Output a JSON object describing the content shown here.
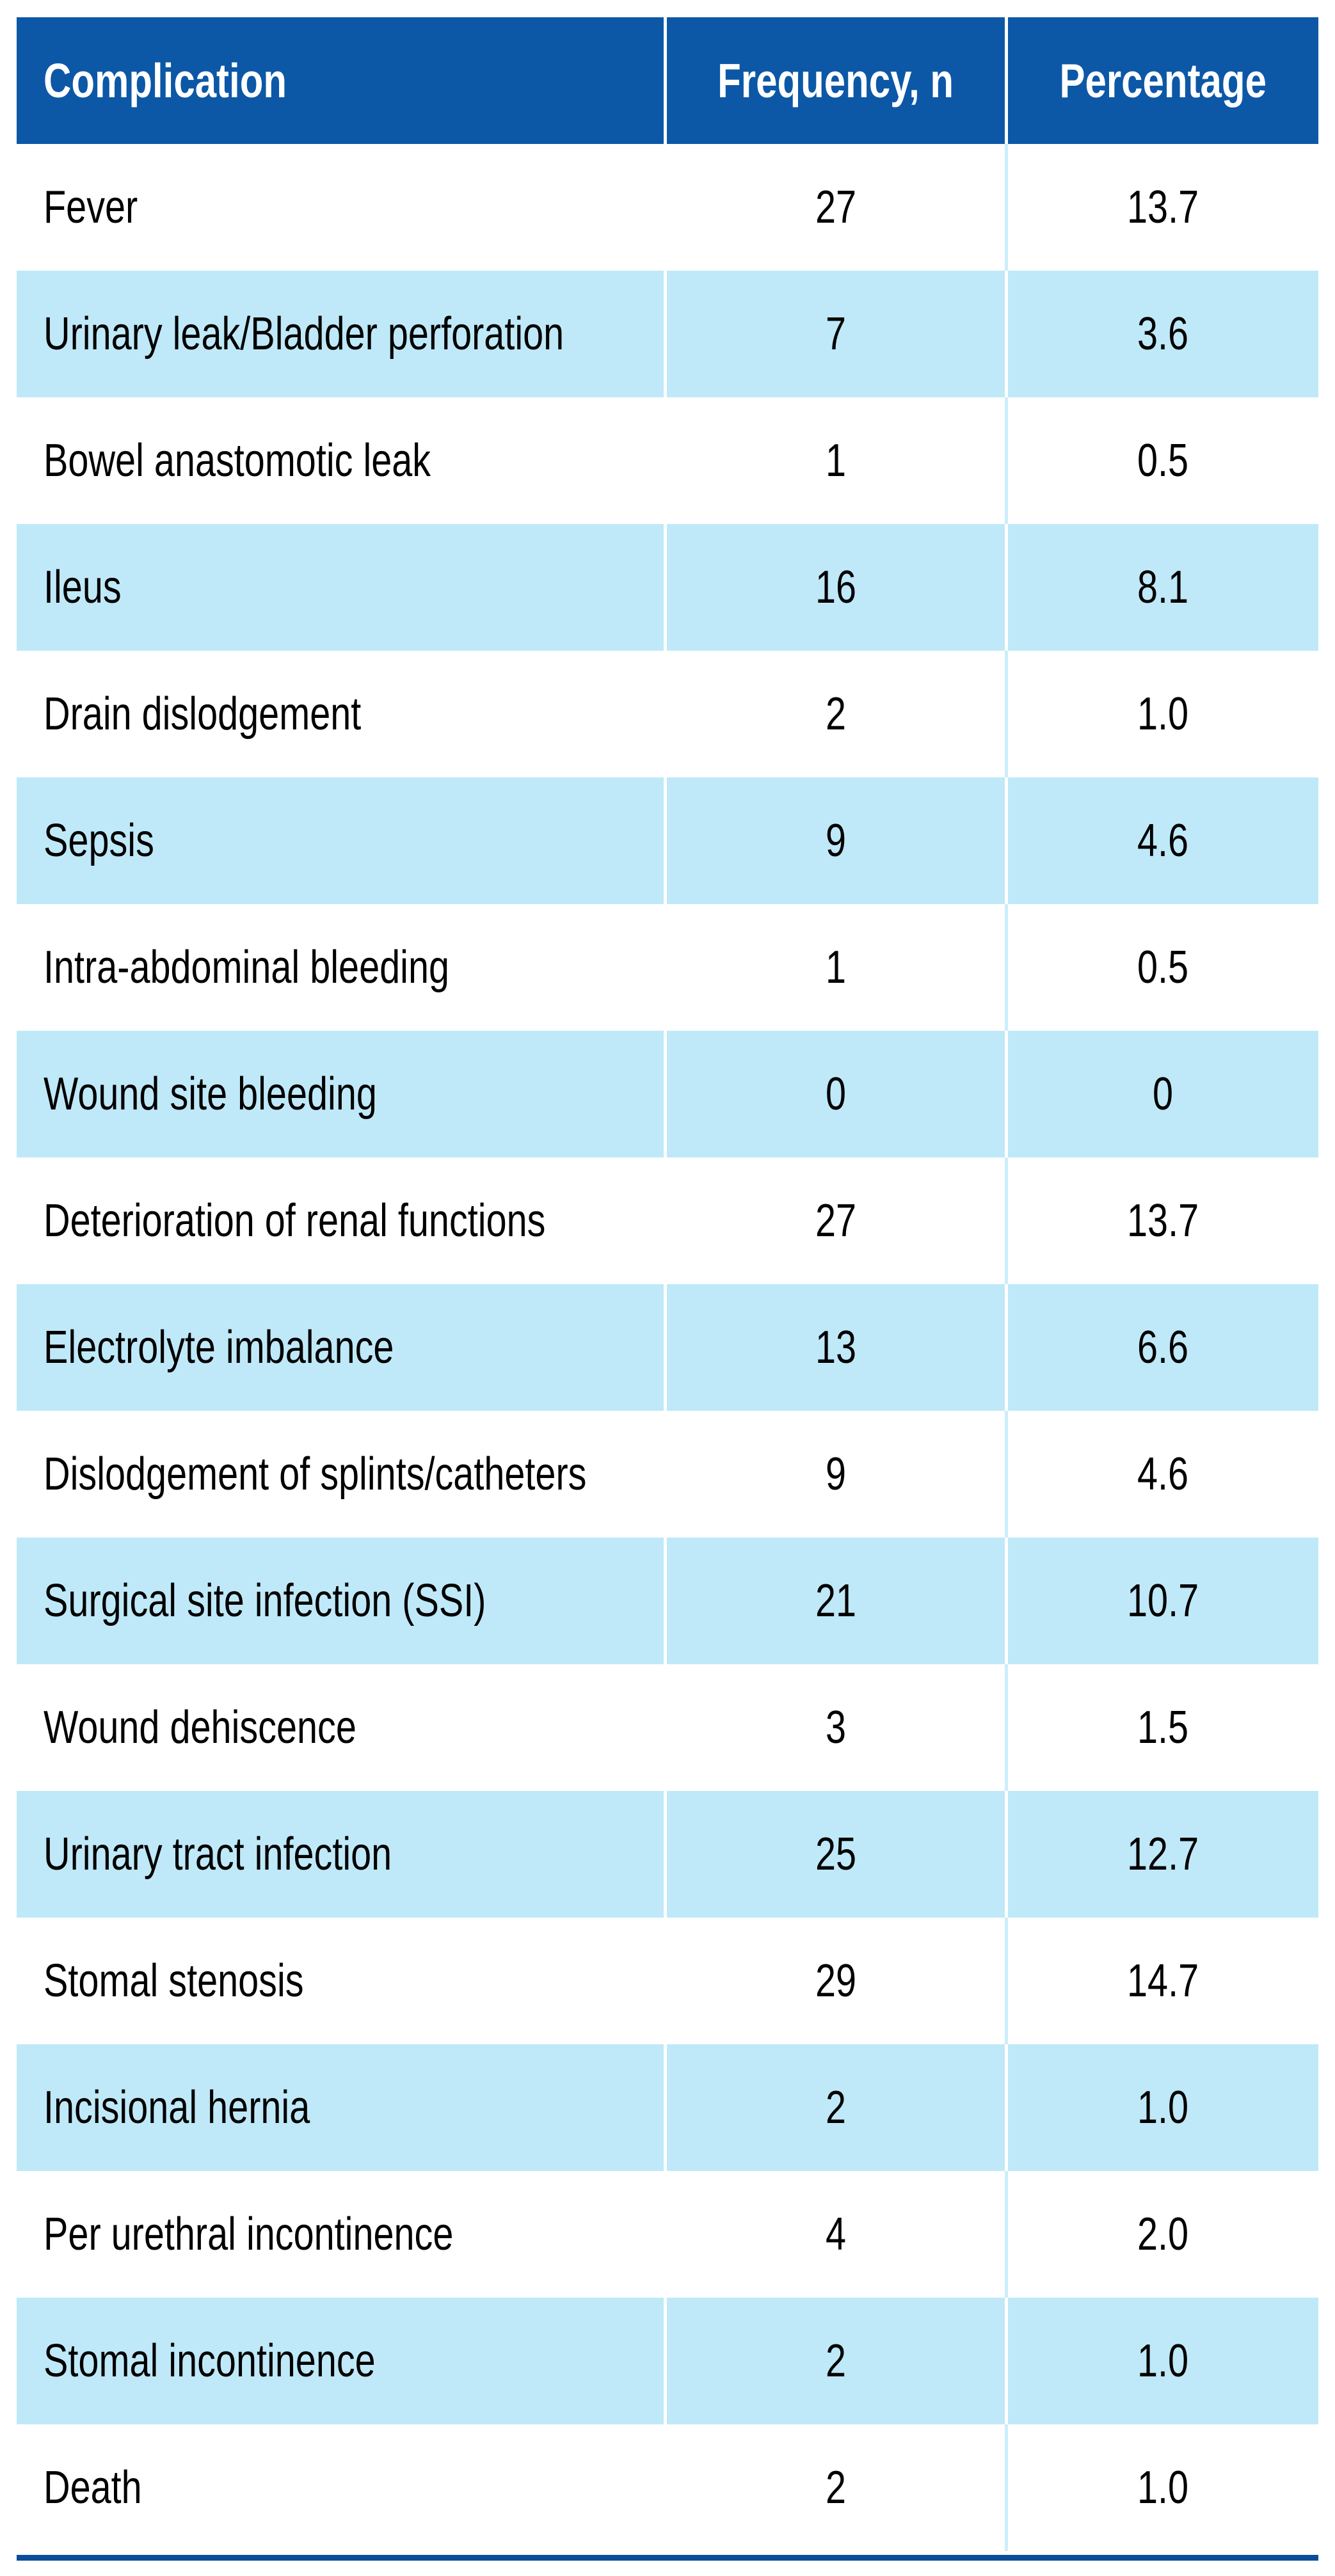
{
  "table": {
    "headers": {
      "complication": "Complication",
      "frequency": "Frequency, n",
      "percentage": "Percentage"
    },
    "rows": [
      {
        "complication": "Fever",
        "frequency": "27",
        "percentage": "13.7"
      },
      {
        "complication": "Urinary leak/Bladder perforation",
        "frequency": "7",
        "percentage": "3.6"
      },
      {
        "complication": "Bowel anastomotic leak",
        "frequency": "1",
        "percentage": "0.5"
      },
      {
        "complication": "Ileus",
        "frequency": "16",
        "percentage": "8.1"
      },
      {
        "complication": "Drain dislodgement",
        "frequency": "2",
        "percentage": "1.0"
      },
      {
        "complication": "Sepsis",
        "frequency": "9",
        "percentage": "4.6"
      },
      {
        "complication": "Intra-abdominal bleeding",
        "frequency": "1",
        "percentage": "0.5"
      },
      {
        "complication": "Wound site bleeding",
        "frequency": "0",
        "percentage": "0"
      },
      {
        "complication": "Deterioration of renal functions",
        "frequency": "27",
        "percentage": "13.7"
      },
      {
        "complication": "Electrolyte imbalance",
        "frequency": "13",
        "percentage": "6.6"
      },
      {
        "complication": "Dislodgement of splints/catheters",
        "frequency": "9",
        "percentage": "4.6"
      },
      {
        "complication": "Surgical site infection (SSI)",
        "frequency": "21",
        "percentage": "10.7"
      },
      {
        "complication": "Wound dehiscence",
        "frequency": "3",
        "percentage": "1.5"
      },
      {
        "complication": "Urinary tract infection",
        "frequency": "25",
        "percentage": "12.7"
      },
      {
        "complication": "Stomal stenosis",
        "frequency": "29",
        "percentage": "14.7"
      },
      {
        "complication": "Incisional hernia",
        "frequency": "2",
        "percentage": "1.0"
      },
      {
        "complication": "Per urethral incontinence",
        "frequency": "4",
        "percentage": "2.0"
      },
      {
        "complication": "Stomal incontinence",
        "frequency": "2",
        "percentage": "1.0"
      },
      {
        "complication": "Death",
        "frequency": "2",
        "percentage": "1.0"
      }
    ]
  },
  "colors": {
    "header_bg": "#0c58a6",
    "header_text": "#ffffff",
    "row_alt_bg": "#bfe9f8",
    "divider": "#cdeefb",
    "bottom_bar": "#0a4d99",
    "body_text": "#000000"
  }
}
